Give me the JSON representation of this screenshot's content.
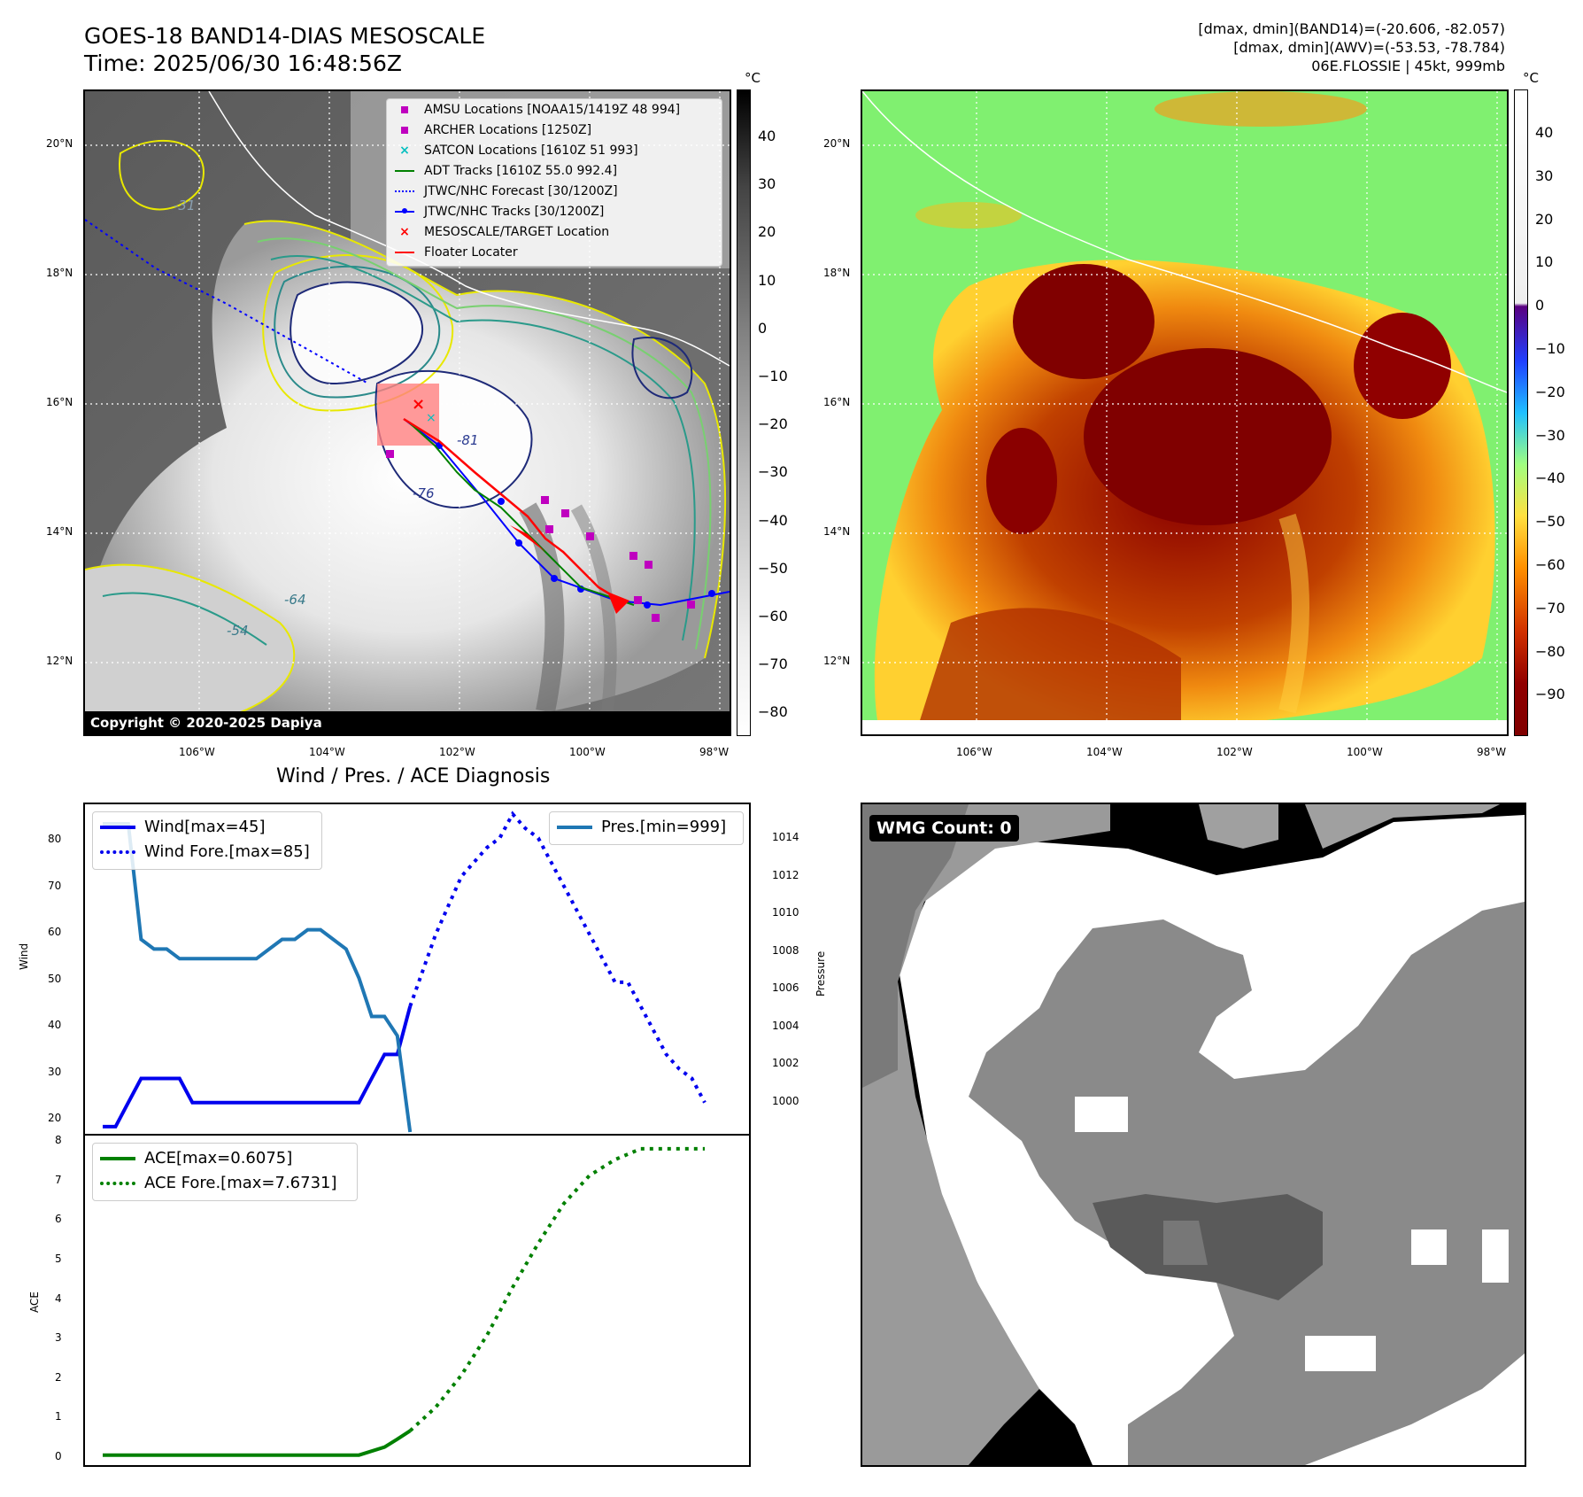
{
  "header": {
    "title_line1": "GOES-18 BAND14-DIAS MESOSCALE",
    "title_line2": "Time: 2025/06/30 16:48:56Z",
    "stats_line1": "[dmax, dmin](BAND14)=(-20.606, -82.057)",
    "stats_line2": "[dmax, dmin](AWV)=(-53.53, -78.784)",
    "stats_line3": "06E.FLOSSIE | 45kt, 999mb"
  },
  "map_axes": {
    "lon_labels": [
      "106°W",
      "104°W",
      "102°W",
      "100°W",
      "98°W"
    ],
    "lat_labels": [
      "20°N",
      "18°N",
      "16°N",
      "14°N",
      "12°N"
    ]
  },
  "ir_panel": {
    "copyright": "Copyright © 2020-2025 Dapiya",
    "contour_labels": [
      "-31",
      "-54",
      "-64",
      "-76",
      "-81"
    ],
    "colorbar": {
      "unit": "°C",
      "ticks": [
        "40",
        "30",
        "20",
        "10",
        "0",
        "−10",
        "−20",
        "−30",
        "−40",
        "−50",
        "−60",
        "−70",
        "−80"
      ]
    },
    "legend": [
      {
        "icon": "magenta-square",
        "label": "AMSU Locations [NOAA15/1419Z 48 994]",
        "color": "#bf00bf"
      },
      {
        "icon": "magenta-square",
        "label": "ARCHER Locations [1250Z]",
        "color": "#bf00bf"
      },
      {
        "icon": "cyan-x",
        "label": "SATCON Locations [1610Z 51 993]",
        "color": "#00bfbf"
      },
      {
        "icon": "green-line",
        "label": "ADT Tracks [1610Z 55.0 992.4]",
        "color": "#008000"
      },
      {
        "icon": "blue-dotted-line",
        "label": "JTWC/NHC Forecast [30/1200Z]",
        "color": "#0000ff"
      },
      {
        "icon": "blue-line-dot",
        "label": "JTWC/NHC Tracks [30/1200Z]",
        "color": "#0000ff"
      },
      {
        "icon": "red-x",
        "label": "MESOSCALE/TARGET Location",
        "color": "#ff0000"
      },
      {
        "icon": "red-line",
        "label": "Floater Locater",
        "color": "#ff0000"
      }
    ]
  },
  "awv_panel": {
    "colorbar": {
      "unit": "°C",
      "ticks": [
        "40",
        "30",
        "20",
        "10",
        "0",
        "−10",
        "−20",
        "−30",
        "−40",
        "−50",
        "−60",
        "−70",
        "−80",
        "−90"
      ]
    }
  },
  "wmg_panel": {
    "label": "WMG Count: 0"
  },
  "diagnosis": {
    "title": "Wind / Pres. / ACE Diagnosis"
  },
  "chart_data": [
    {
      "type": "line",
      "title": "Wind / Pres. / ACE Diagnosis",
      "ylabel": "Wind",
      "y2label": "Pressure",
      "ylim": [
        18.5,
        87
      ],
      "y2lim": [
        999.0,
        1015.0
      ],
      "yticks": [
        "80",
        "70",
        "60",
        "50",
        "40",
        "30",
        "20"
      ],
      "y2ticks": [
        "1014",
        "1012",
        "1010",
        "1008",
        "1006",
        "1004",
        "1002",
        "1000"
      ],
      "x_count": 48,
      "series": [
        {
          "name": "Wind[max=45]",
          "color": "#0000ee",
          "style": "solid",
          "axis": "left",
          "x": [
            0,
            1,
            2,
            3,
            4,
            5,
            6,
            7,
            8,
            9,
            10,
            11,
            12,
            13,
            14,
            15,
            16,
            17,
            18,
            19,
            20,
            21,
            22,
            23,
            24
          ],
          "values": [
            20,
            20,
            25,
            30,
            30,
            30,
            30,
            25,
            25,
            25,
            25,
            25,
            25,
            25,
            25,
            25,
            25,
            25,
            25,
            25,
            25,
            30,
            35,
            35,
            45
          ]
        },
        {
          "name": "Wind Fore.[max=85]",
          "color": "#0000ee",
          "style": "dotted",
          "axis": "left",
          "x": [
            24,
            26,
            28,
            30,
            31,
            32,
            33,
            34,
            36,
            38,
            40,
            41,
            42,
            44,
            45,
            46,
            47
          ],
          "values": [
            45,
            60,
            72,
            78,
            80,
            85,
            82,
            80,
            70,
            60,
            50,
            50,
            45,
            35,
            32,
            30,
            25
          ]
        },
        {
          "name": "Pres.[min=999]",
          "color": "#1f77b4",
          "style": "solid",
          "axis": "right",
          "x": [
            0,
            1,
            2,
            3,
            4,
            5,
            6,
            7,
            8,
            9,
            10,
            11,
            12,
            13,
            14,
            15,
            16,
            17,
            18,
            19,
            20,
            21,
            22,
            23,
            24
          ],
          "values": [
            1015,
            1015,
            1015,
            1009,
            1008.5,
            1008.5,
            1008,
            1008,
            1008,
            1008,
            1008,
            1008,
            1008,
            1008.5,
            1009,
            1009,
            1009.5,
            1009.5,
            1009,
            1008.5,
            1007,
            1005,
            1005,
            1004,
            999
          ]
        }
      ]
    },
    {
      "type": "line",
      "ylabel": "ACE",
      "ylim": [
        -0.25,
        8
      ],
      "yticks": [
        "8",
        "7",
        "6",
        "5",
        "4",
        "3",
        "2",
        "1",
        "0"
      ],
      "x_count": 48,
      "series": [
        {
          "name": "ACE[max=0.6075]",
          "color": "#008000",
          "style": "solid",
          "x": [
            0,
            4,
            8,
            12,
            16,
            20,
            22,
            23,
            24
          ],
          "values": [
            0,
            0,
            0,
            0,
            0,
            0,
            0.2,
            0.4,
            0.6075
          ]
        },
        {
          "name": "ACE Fore.[max=7.6731]",
          "color": "#008000",
          "style": "dotted",
          "x": [
            24,
            26,
            28,
            30,
            32,
            34,
            36,
            38,
            40,
            42,
            44,
            46,
            47
          ],
          "values": [
            0.6075,
            1.2,
            2.0,
            3.0,
            4.2,
            5.3,
            6.3,
            7.0,
            7.4,
            7.67,
            7.67,
            7.67,
            7.67
          ]
        }
      ]
    }
  ]
}
